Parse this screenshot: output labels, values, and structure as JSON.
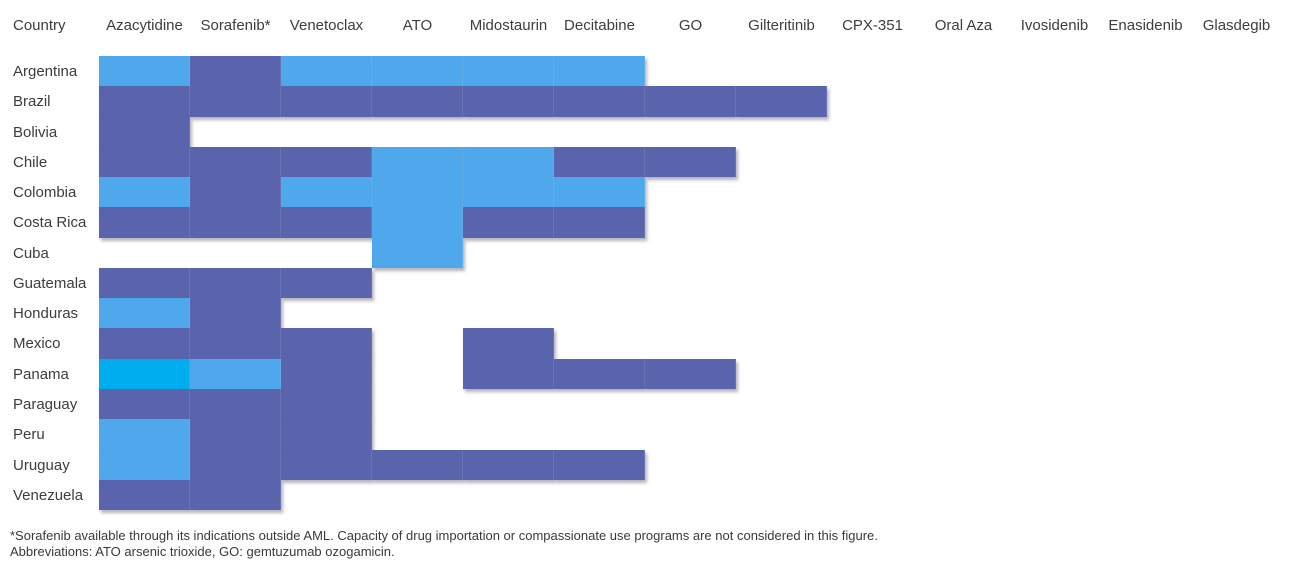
{
  "chart_data": {
    "type": "heatmap",
    "title": "",
    "row_header": "Country",
    "columns": [
      "Azacytidine",
      "Sorafenib*",
      "Venetoclax",
      "ATO",
      "Midostaurin",
      "Decitabine",
      "GO",
      "Gilteritinib",
      "CPX-351",
      "Oral Aza",
      "Ivosidenib",
      "Enasidenib",
      "Glasdegib"
    ],
    "rows": [
      "Argentina",
      "Brazil",
      "Bolivia",
      "Chile",
      "Colombia",
      "Costa Rica",
      "Cuba",
      "Guatemala",
      "Honduras",
      "Mexico",
      "Panama",
      "Paraguay",
      "Peru",
      "Uruguay",
      "Venezuela"
    ],
    "cells": [
      [
        "sky",
        "navy",
        "sky",
        "sky",
        "sky",
        "sky",
        null,
        null,
        null,
        null,
        null,
        null,
        null
      ],
      [
        "navy",
        "navy",
        "navy",
        "navy",
        "navy",
        "navy",
        "navy",
        "navy",
        null,
        null,
        null,
        null,
        null
      ],
      [
        "navy",
        null,
        null,
        null,
        null,
        null,
        null,
        null,
        null,
        null,
        null,
        null,
        null
      ],
      [
        "navy",
        "navy",
        "navy",
        "sky",
        "sky",
        "navy",
        "navy",
        null,
        null,
        null,
        null,
        null,
        null
      ],
      [
        "sky",
        "navy",
        "sky",
        "sky",
        "sky",
        "sky",
        null,
        null,
        null,
        null,
        null,
        null,
        null
      ],
      [
        "navy",
        "navy",
        "navy",
        "sky",
        "navy",
        "navy",
        null,
        null,
        null,
        null,
        null,
        null,
        null
      ],
      [
        null,
        null,
        null,
        "sky",
        null,
        null,
        null,
        null,
        null,
        null,
        null,
        null,
        null
      ],
      [
        "navy",
        "navy",
        "navy",
        null,
        null,
        null,
        null,
        null,
        null,
        null,
        null,
        null,
        null
      ],
      [
        "sky",
        "navy",
        null,
        null,
        null,
        null,
        null,
        null,
        null,
        null,
        null,
        null,
        null
      ],
      [
        "navy",
        "navy",
        "navy",
        null,
        "navy",
        null,
        null,
        null,
        null,
        null,
        null,
        null,
        null
      ],
      [
        "cyan",
        "sky",
        "navy",
        null,
        "navy",
        "navy",
        "navy",
        null,
        null,
        null,
        null,
        null,
        null
      ],
      [
        "navy",
        "navy",
        "navy",
        null,
        null,
        null,
        null,
        null,
        null,
        null,
        null,
        null,
        null
      ],
      [
        "sky",
        "navy",
        "navy",
        null,
        null,
        null,
        null,
        null,
        null,
        null,
        null,
        null,
        null
      ],
      [
        "sky",
        "navy",
        "navy",
        "navy",
        "navy",
        "navy",
        null,
        null,
        null,
        null,
        null,
        null,
        null
      ],
      [
        "navy",
        "navy",
        null,
        null,
        null,
        null,
        null,
        null,
        null,
        null,
        null,
        null,
        null
      ]
    ],
    "palette": {
      "sky": "#4FA8EB",
      "navy": "#5A64AD",
      "cyan": "#00AEEF"
    },
    "legend_position": "none",
    "grid": false,
    "footnotes": [
      "*Sorafenib available through its indications outside AML. Capacity of drug importation or compassionate use programs are not considered in this figure.",
      "Abbreviations: ATO arsenic trioxide, GO: gemtuzumab ozogamicin."
    ]
  }
}
